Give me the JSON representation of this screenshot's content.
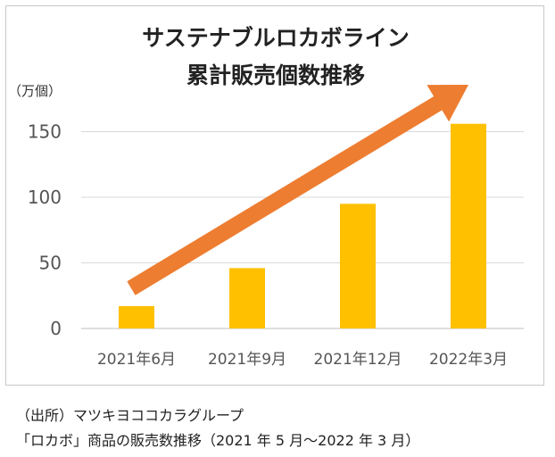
{
  "chart_data": {
    "type": "bar",
    "title_lines": [
      "サステナブルロカボライン",
      "累計販売個数推移"
    ],
    "unit_label": "（万個）",
    "categories": [
      "2021年6月",
      "2021年9月",
      "2021年12月",
      "2022年3月"
    ],
    "values": [
      17,
      46,
      95,
      156
    ],
    "ylim": [
      0,
      175
    ],
    "yticks": [
      "0",
      "50",
      "100",
      "150"
    ],
    "grid": true,
    "bar_color": "#FFC000",
    "arrow_color": "#ED7D31",
    "annotation": "upward trend arrow"
  },
  "source": {
    "line1": "（出所）マツキヨココカラグループ",
    "line2": "「ロカボ」商品の販売数推移（2021 年 5 月～2022 年 3 月）"
  }
}
